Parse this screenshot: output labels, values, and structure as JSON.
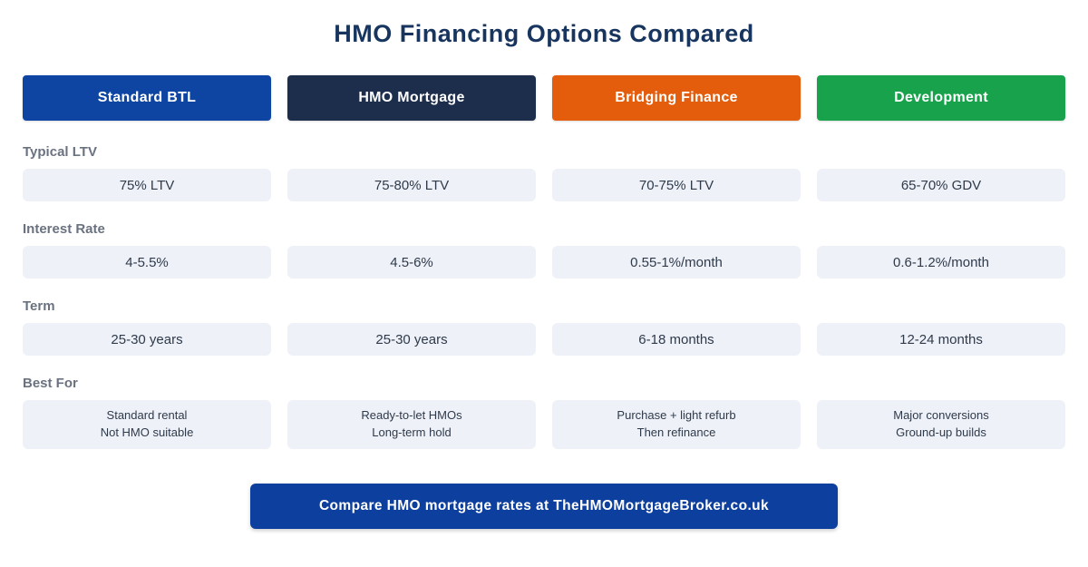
{
  "title": "HMO Financing Options Compared",
  "chart_data": {
    "type": "table",
    "title": "HMO Financing Options Compared",
    "columns": [
      {
        "label": "Standard BTL",
        "color": "#0e45a3"
      },
      {
        "label": "HMO Mortgage",
        "color": "#1d2e4d"
      },
      {
        "label": "Bridging Finance",
        "color": "#e35d0c"
      },
      {
        "label": "Development",
        "color": "#17a24b"
      }
    ],
    "rows": [
      {
        "label": "Typical LTV",
        "values": [
          "75% LTV",
          "75-80% LTV",
          "70-75% LTV",
          "65-70% GDV"
        ]
      },
      {
        "label": "Interest Rate",
        "values": [
          "4-5.5%",
          "4.5-6%",
          "0.55-1%/month",
          "0.6-1.2%/month"
        ]
      },
      {
        "label": "Term",
        "values": [
          "25-30 years",
          "25-30 years",
          "6-18 months",
          "12-24 months"
        ]
      },
      {
        "label": "Best For",
        "values": [
          "Standard rental\nNot HMO suitable",
          "Ready-to-let HMOs\nLong-term hold",
          "Purchase + light refurb\nThen refinance",
          "Major conversions\nGround-up builds"
        ]
      }
    ]
  },
  "footer": {
    "cta_label": "Compare HMO mortgage rates at TheHMOMortgageBroker.co.uk",
    "color": "#0d3f9e"
  },
  "palette": {
    "title_color": "#17355e",
    "cell_background": "#eef1f8",
    "row_label_color": "#6a7280"
  }
}
